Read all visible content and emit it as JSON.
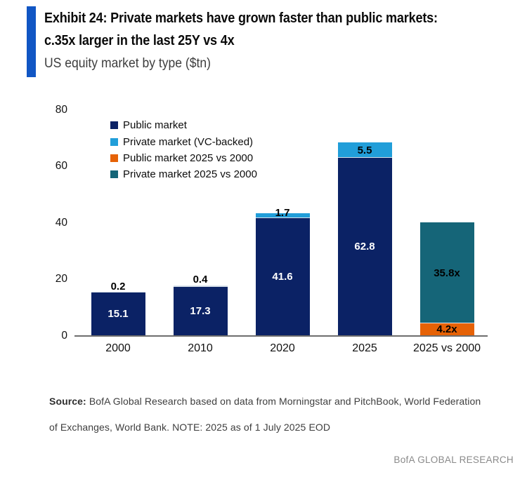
{
  "header": {
    "title_line1": "Exhibit 24: Private markets have grown faster than public markets:",
    "title_line2": "c.35x larger in the last 25Y vs 4x",
    "subtitle": "US equity market by type ($tn)"
  },
  "colors": {
    "accent_bar": "#1156C4",
    "axis_line": "#6E6E6E",
    "public_navy": "#0B2265",
    "private_sky": "#219ED9",
    "public_orange": "#E66206",
    "private_teal": "#156578"
  },
  "chart_data": {
    "type": "bar",
    "stacked": true,
    "title": "US equity market by type ($tn)",
    "xlabel": "",
    "ylabel": "",
    "ylim": [
      0,
      80
    ],
    "yticks": [
      0,
      20,
      40,
      60,
      80
    ],
    "grid": false,
    "legend_position": "top-left-inside",
    "categories": [
      "2000",
      "2010",
      "2020",
      "2025",
      "2025 vs 2000"
    ],
    "series": [
      {
        "name": "Public market",
        "color": "#0B2265"
      },
      {
        "name": "Private market (VC-backed)",
        "color": "#219ED9"
      },
      {
        "name": "Public market 2025 vs 2000",
        "color": "#E66206"
      },
      {
        "name": "Private market 2025 vs 2000",
        "color": "#156578"
      }
    ],
    "bars": [
      {
        "category": "2000",
        "segments": [
          {
            "series": "Public market",
            "value": 15.1,
            "label": "15.1",
            "label_color": "#FFFFFF"
          },
          {
            "series": "Private market (VC-backed)",
            "value": 0.2,
            "label": "0.2",
            "label_color": "#000000"
          }
        ]
      },
      {
        "category": "2010",
        "segments": [
          {
            "series": "Public market",
            "value": 17.3,
            "label": "17.3",
            "label_color": "#FFFFFF"
          },
          {
            "series": "Private market (VC-backed)",
            "value": 0.4,
            "label": "0.4",
            "label_color": "#000000"
          }
        ]
      },
      {
        "category": "2020",
        "segments": [
          {
            "series": "Public market",
            "value": 41.6,
            "label": "41.6",
            "label_color": "#FFFFFF"
          },
          {
            "series": "Private market (VC-backed)",
            "value": 1.7,
            "label": "1.7",
            "label_color": "#000000"
          }
        ]
      },
      {
        "category": "2025",
        "segments": [
          {
            "series": "Public market",
            "value": 62.8,
            "label": "62.8",
            "label_color": "#FFFFFF"
          },
          {
            "series": "Private market (VC-backed)",
            "value": 5.5,
            "label": "5.5",
            "label_color": "#000000"
          }
        ]
      },
      {
        "category": "2025 vs 2000",
        "segments": [
          {
            "series": "Public market 2025 vs 2000",
            "value": 4.2,
            "label": "4.2x",
            "label_color": "#000000"
          },
          {
            "series": "Private market 2025 vs 2000",
            "value": 35.8,
            "label": "35.8x",
            "label_color": "#000000"
          }
        ]
      }
    ]
  },
  "footer": {
    "source_label": "Source:",
    "line1_rest": " BofA Global Research based on data from Morningstar and PitchBook, World Federation",
    "line2": "of Exchanges, World Bank. NOTE: 2025 as of 1 July 2025 EOD",
    "brand": "BofA GLOBAL RESEARCH"
  }
}
